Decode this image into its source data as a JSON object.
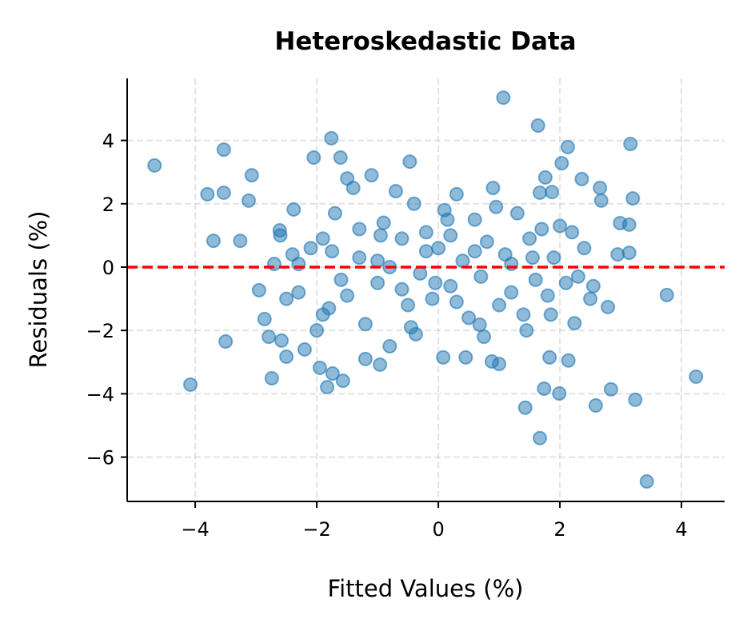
{
  "chart_data": {
    "type": "scatter",
    "title": "Heteroskedastic Data",
    "xlabel": "Fitted Values (%)",
    "ylabel": "Residuals (%)",
    "xlim": [
      -5.12,
      4.71
    ],
    "ylim": [
      -7.4,
      5.96
    ],
    "xticks": [
      -4,
      -2,
      0,
      2,
      4
    ],
    "yticks": [
      -6,
      -4,
      -2,
      0,
      2,
      4
    ],
    "xtick_labels": [
      "−4",
      "−2",
      "0",
      "2",
      "4"
    ],
    "ytick_labels": [
      "−6",
      "−4",
      "−2",
      "0",
      "2",
      "4"
    ],
    "grid": true,
    "point_color": "#1f77b4",
    "point_alpha": 0.5,
    "reference_line": {
      "y": 0,
      "color": "#ff0000",
      "style": "dashed"
    },
    "points": [
      [
        -4.67,
        3.21
      ],
      [
        -4.08,
        -3.71
      ],
      [
        -3.53,
        3.71
      ],
      [
        -3.53,
        2.35
      ],
      [
        -3.8,
        2.3
      ],
      [
        -3.7,
        0.83
      ],
      [
        -3.26,
        0.83
      ],
      [
        -3.07,
        2.9
      ],
      [
        -3.12,
        2.1
      ],
      [
        -3.5,
        -2.35
      ],
      [
        -2.95,
        -0.73
      ],
      [
        -2.86,
        -1.64
      ],
      [
        -2.74,
        -3.51
      ],
      [
        -2.79,
        -2.2
      ],
      [
        -2.58,
        -2.32
      ],
      [
        -2.5,
        -2.83
      ],
      [
        -2.05,
        3.46
      ],
      [
        -1.76,
        4.07
      ],
      [
        1.07,
        5.35
      ],
      [
        1.64,
        4.47
      ],
      [
        2.13,
        3.79
      ],
      [
        3.16,
        3.89
      ],
      [
        3.2,
        2.17
      ],
      [
        3.76,
        -0.88
      ],
      [
        4.24,
        -3.46
      ],
      [
        3.43,
        -6.77
      ],
      [
        3.24,
        -4.19
      ],
      [
        2.84,
        -3.86
      ],
      [
        2.59,
        -4.37
      ],
      [
        1.67,
        -5.4
      ],
      [
        1.43,
        -4.44
      ],
      [
        1.74,
        -3.84
      ],
      [
        1.99,
        -3.99
      ],
      [
        1.83,
        -2.85
      ],
      [
        2.14,
        -2.95
      ],
      [
        2.24,
        -1.77
      ],
      [
        2.79,
        -1.26
      ],
      [
        2.99,
        1.39
      ],
      [
        3.14,
        1.34
      ],
      [
        2.95,
        0.4
      ],
      [
        3.14,
        0.45
      ],
      [
        2.68,
        2.1
      ],
      [
        2.66,
        2.5
      ],
      [
        2.36,
        2.78
      ],
      [
        2.03,
        3.28
      ],
      [
        1.76,
        2.83
      ],
      [
        1.67,
        2.35
      ],
      [
        1.87,
        2.37
      ],
      [
        -0.47,
        3.33
      ],
      [
        -1.83,
        -3.79
      ],
      [
        -1.95,
        -3.18
      ],
      [
        -1.57,
        -3.59
      ],
      [
        -1.74,
        -3.36
      ],
      [
        -0.96,
        -3.08
      ],
      [
        -0.37,
        -2.12
      ],
      [
        0.08,
        -2.85
      ],
      [
        0.45,
        -2.85
      ],
      [
        1.0,
        -3.06
      ],
      [
        0.88,
        -2.98
      ],
      [
        0.68,
        -1.82
      ],
      [
        -2.38,
        1.82
      ],
      [
        -2.61,
        1.16
      ],
      [
        -1.61,
        3.46
      ],
      [
        -2.7,
        0.1
      ],
      [
        -2.6,
        1.0
      ],
      [
        -2.4,
        0.4
      ],
      [
        -2.3,
        -0.8
      ],
      [
        -2.5,
        -1.0
      ],
      [
        -2.2,
        -2.6
      ],
      [
        -2.0,
        -2.0
      ],
      [
        -1.9,
        0.9
      ],
      [
        -1.8,
        -1.3
      ],
      [
        -1.7,
        1.7
      ],
      [
        -1.5,
        2.8
      ],
      [
        -1.4,
        2.5
      ],
      [
        -1.3,
        0.3
      ],
      [
        -1.2,
        -1.8
      ],
      [
        -1.1,
        2.9
      ],
      [
        -1.0,
        -0.5
      ],
      [
        -0.9,
        1.4
      ],
      [
        -0.8,
        -2.5
      ],
      [
        -0.7,
        2.4
      ],
      [
        -0.6,
        0.9
      ],
      [
        -0.5,
        -1.2
      ],
      [
        -0.4,
        2.0
      ],
      [
        -0.3,
        -0.2
      ],
      [
        -0.2,
        1.1
      ],
      [
        -0.1,
        -1.0
      ],
      [
        0.0,
        0.6
      ],
      [
        0.1,
        1.8
      ],
      [
        0.2,
        -0.6
      ],
      [
        0.3,
        2.3
      ],
      [
        0.4,
        0.2
      ],
      [
        0.5,
        -1.6
      ],
      [
        0.6,
        1.5
      ],
      [
        0.7,
        -0.3
      ],
      [
        0.8,
        0.8
      ],
      [
        0.9,
        2.5
      ],
      [
        1.0,
        -1.2
      ],
      [
        1.1,
        0.4
      ],
      [
        1.2,
        -0.8
      ],
      [
        1.3,
        1.7
      ],
      [
        1.4,
        -1.5
      ],
      [
        1.5,
        0.9
      ],
      [
        1.6,
        -0.4
      ],
      [
        1.7,
        1.2
      ],
      [
        1.8,
        -0.9
      ],
      [
        1.9,
        0.3
      ],
      [
        2.0,
        1.3
      ],
      [
        2.1,
        -0.5
      ],
      [
        2.2,
        1.1
      ],
      [
        2.3,
        -0.3
      ],
      [
        2.4,
        0.6
      ],
      [
        2.5,
        -1.0
      ],
      [
        2.55,
        -0.6
      ],
      [
        -1.6,
        -0.4
      ],
      [
        -1.0,
        0.2
      ],
      [
        -0.6,
        -0.7
      ],
      [
        0.3,
        -1.1
      ],
      [
        0.6,
        0.5
      ],
      [
        -1.3,
        1.2
      ],
      [
        -0.2,
        0.5
      ],
      [
        0.2,
        1.0
      ],
      [
        1.2,
        0.1
      ],
      [
        -0.8,
        0.0
      ],
      [
        -1.5,
        -0.9
      ],
      [
        -1.9,
        -1.5
      ],
      [
        1.45,
        -2.0
      ],
      [
        0.95,
        1.9
      ],
      [
        -0.45,
        -1.9
      ],
      [
        -1.2,
        -2.9
      ],
      [
        -2.1,
        0.6
      ],
      [
        -2.3,
        0.1
      ],
      [
        0.15,
        1.5
      ],
      [
        -0.05,
        -0.5
      ],
      [
        1.55,
        0.3
      ],
      [
        -1.75,
        0.5
      ],
      [
        0.75,
        -2.2
      ],
      [
        1.85,
        -1.5
      ],
      [
        -0.95,
        1.0
      ]
    ]
  }
}
